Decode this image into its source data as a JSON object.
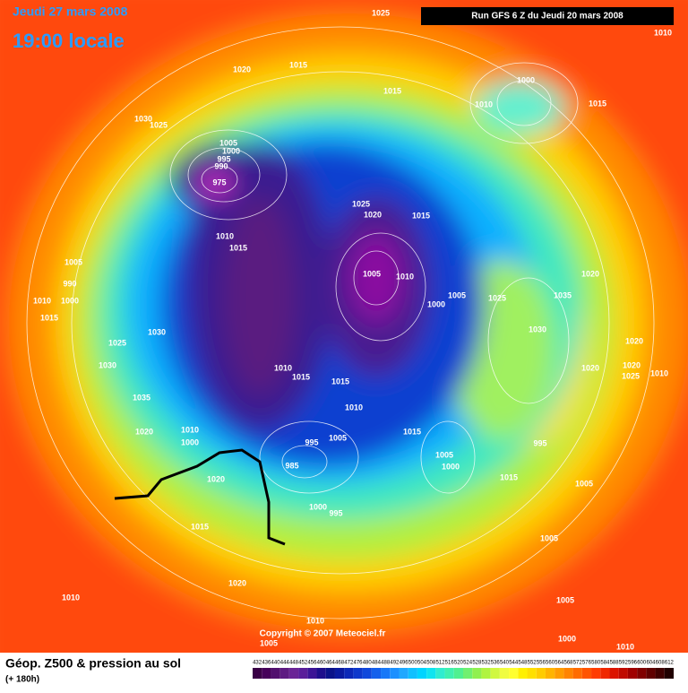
{
  "header": {
    "date": "Jeudi 27 mars 2008",
    "time": "19:00 locale"
  },
  "run": "Run GFS 6 Z du Jeudi 20 mars 2008",
  "copyright": "Copyright © 2007 Meteociel.fr",
  "footer": {
    "title": "Géop. Z500 & pression au sol",
    "lead": "(+ 180h)"
  },
  "isobar_labels": [
    1025,
    1010,
    1020,
    1015,
    1015,
    1000,
    1010,
    1015,
    1030,
    1025,
    1005,
    1000,
    995,
    990,
    975,
    1025,
    1020,
    1015,
    1010,
    1015,
    1005,
    1010,
    1005,
    990,
    1010,
    1000,
    1015,
    1020,
    1025,
    1035,
    1005,
    1000,
    1030,
    1025,
    1030,
    1030,
    1020,
    1020,
    1020,
    1025,
    1010,
    1010,
    1015,
    1015,
    1035,
    1010,
    1020,
    1010,
    1000,
    1015,
    995,
    1005,
    995,
    1005,
    1000,
    985,
    1015,
    1020,
    1005,
    1000,
    995,
    1015,
    1005,
    1020,
    1010,
    1005,
    1010,
    1005,
    1000,
    1010
  ],
  "legend": {
    "values": [
      432,
      436,
      440,
      444,
      448,
      452,
      456,
      460,
      464,
      468,
      472,
      476,
      480,
      484,
      488,
      492,
      496,
      500,
      504,
      508,
      512,
      516,
      520,
      524,
      528,
      532,
      536,
      540,
      544,
      548,
      552,
      556,
      560,
      564,
      568,
      572,
      576,
      580,
      584,
      588,
      592,
      596,
      600,
      604,
      608,
      612
    ],
    "colors": [
      "#3a0046",
      "#46005a",
      "#52106e",
      "#5e1a82",
      "#6a2496",
      "#5a1e9a",
      "#3c1496",
      "#1e0e8c",
      "#0a128a",
      "#0a1aa0",
      "#0c28b8",
      "#0e38cc",
      "#1048dc",
      "#1460ec",
      "#1878f8",
      "#1c90ff",
      "#20a8ff",
      "#10c0ff",
      "#00d4ff",
      "#10e4f0",
      "#30ecd0",
      "#40f0b0",
      "#50f090",
      "#70f070",
      "#90f050",
      "#b0f440",
      "#d0f840",
      "#f0fc40",
      "#ffff30",
      "#fff000",
      "#ffe000",
      "#ffcc00",
      "#ffb400",
      "#ff9c00",
      "#ff8400",
      "#ff6c00",
      "#ff5400",
      "#ff3c00",
      "#f02800",
      "#dc1400",
      "#c00a00",
      "#a00000",
      "#800000",
      "#600000",
      "#400000",
      "#200000"
    ]
  }
}
